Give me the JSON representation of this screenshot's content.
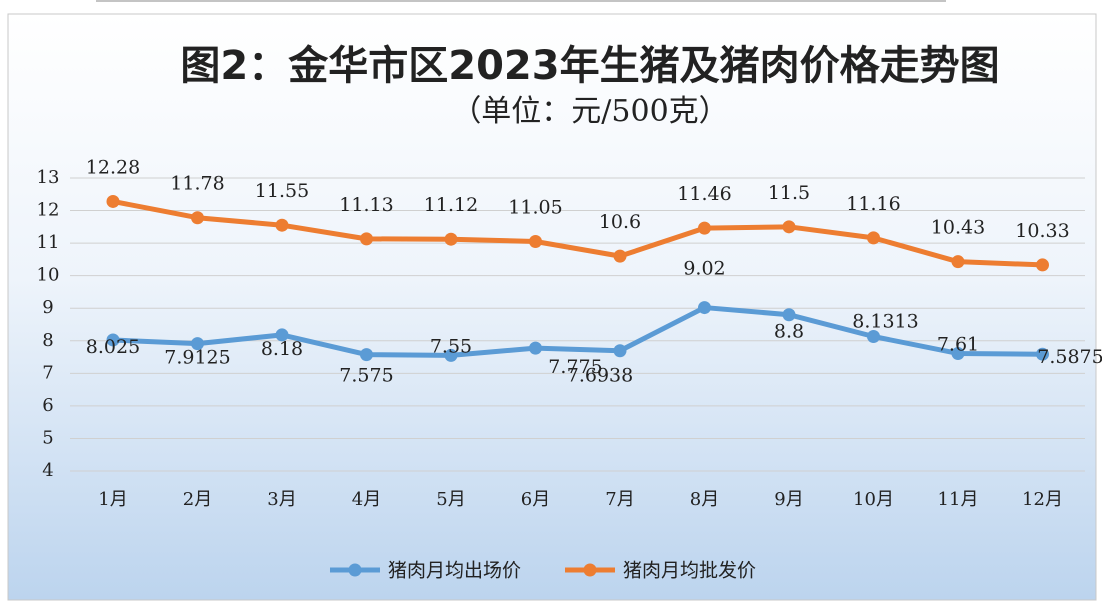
{
  "chart_data": {
    "type": "line",
    "title": "图2：金华市区2023年生猪及猪肉价格走势图",
    "subtitle": "（单位：元/500克）",
    "categories": [
      "1月",
      "2月",
      "3月",
      "4月",
      "5月",
      "6月",
      "7月",
      "8月",
      "9月",
      "10月",
      "11月",
      "12月"
    ],
    "series": [
      {
        "name": "猪肉月均出场价",
        "color": "#5b9bd5",
        "values": [
          8.025,
          7.9125,
          8.18,
          7.575,
          7.55,
          7.775,
          7.6938,
          9.02,
          8.8,
          8.1313,
          7.61,
          7.5875
        ]
      },
      {
        "name": "猪肉月均批发价",
        "color": "#ed7d31",
        "values": [
          12.28,
          11.78,
          11.55,
          11.13,
          11.12,
          11.05,
          10.6,
          11.46,
          11.5,
          11.16,
          10.43,
          10.33
        ]
      }
    ],
    "ylim": [
      4,
      13
    ],
    "yticks": [
      4,
      5,
      6,
      7,
      8,
      9,
      10,
      11,
      12,
      13
    ],
    "grid": true,
    "legend": "bottom"
  }
}
